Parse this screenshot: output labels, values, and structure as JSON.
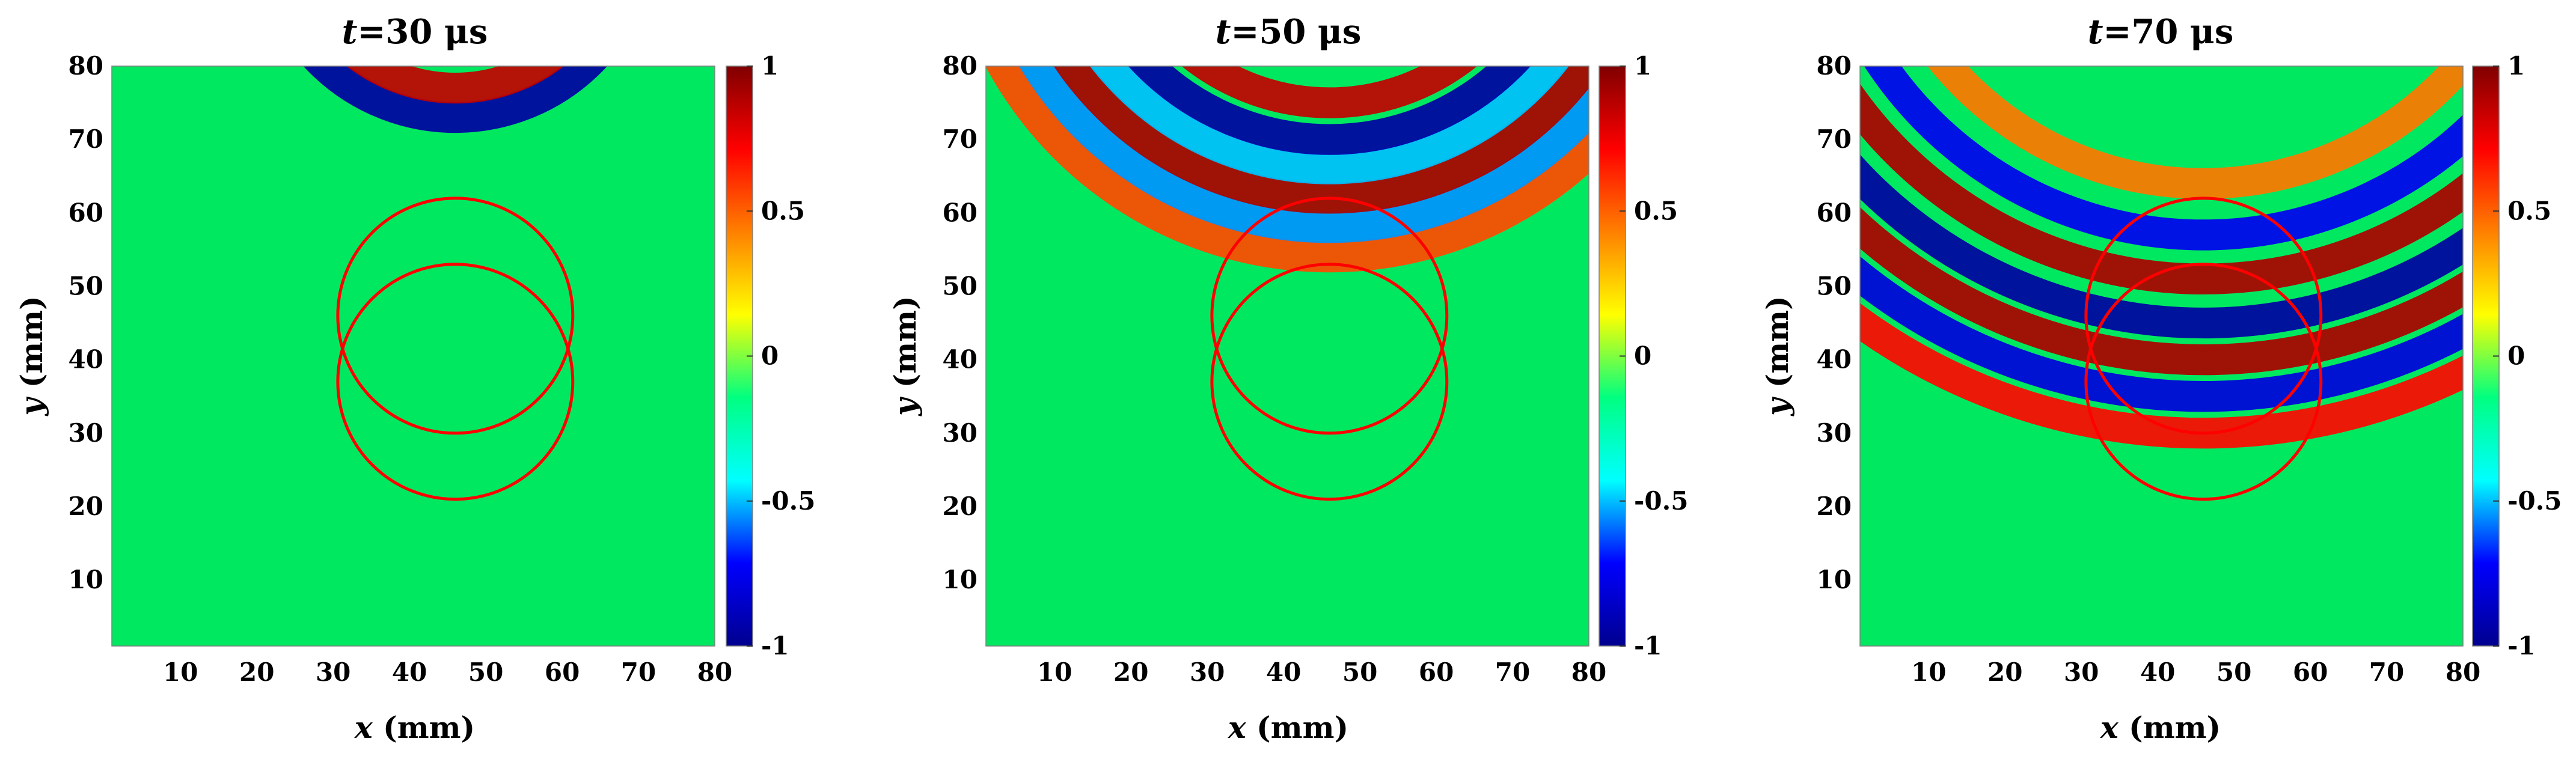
{
  "figure": {
    "colormap": "jet",
    "colormap_stops": [
      "#00008F",
      "#0000FF",
      "#00FFFF",
      "#00FF80",
      "#FFFF00",
      "#FF8000",
      "#FF0000",
      "#800000"
    ],
    "circle_color": "#FF0000",
    "background_color": "#00E860"
  },
  "chart_data": [
    {
      "type": "heatmap",
      "title_var": "t",
      "title_rest": "=30 μs",
      "xlabel_var": "x",
      "xlabel_rest": " (mm)",
      "ylabel_var": "y",
      "ylabel_rest": " (mm)",
      "xlim": [
        1,
        80
      ],
      "ylim": [
        1,
        80
      ],
      "xticks": [
        10,
        20,
        30,
        40,
        50,
        60,
        70,
        80
      ],
      "yticks": [
        10,
        20,
        30,
        40,
        50,
        60,
        70,
        80
      ],
      "clim": [
        -1,
        1
      ],
      "cbar_ticks": [
        {
          "value": 1,
          "label": "1"
        },
        {
          "value": 0.5,
          "label": "0.5"
        },
        {
          "value": 0,
          "label": "0"
        },
        {
          "value": -0.5,
          "label": "-0.5"
        },
        {
          "value": -1,
          "label": "-1"
        }
      ],
      "circles": [
        {
          "cx": 46,
          "cy": 46,
          "r": 16
        },
        {
          "cx": 46,
          "cy": 37,
          "r": 16
        }
      ],
      "wave_fronts": [
        {
          "center_x": 46,
          "center_y": 99,
          "radius": 26,
          "amplitude": -0.95
        },
        {
          "center_x": 46,
          "center_y": 99,
          "radius": 22,
          "amplitude": 0.85
        }
      ]
    },
    {
      "type": "heatmap",
      "title_var": "t",
      "title_rest": "=50 μs",
      "xlabel_var": "x",
      "xlabel_rest": " (mm)",
      "ylabel_var": "y",
      "ylabel_rest": " (mm)",
      "xlim": [
        1,
        80
      ],
      "ylim": [
        1,
        80
      ],
      "xticks": [
        10,
        20,
        30,
        40,
        50,
        60,
        70,
        80
      ],
      "yticks": [
        10,
        20,
        30,
        40,
        50,
        60,
        70,
        80
      ],
      "clim": [
        -1,
        1
      ],
      "cbar_ticks": [
        {
          "value": 1,
          "label": "1"
        },
        {
          "value": 0.5,
          "label": "0.5"
        },
        {
          "value": 0,
          "label": "0"
        },
        {
          "value": -0.5,
          "label": "-0.5"
        },
        {
          "value": -1,
          "label": "-1"
        }
      ],
      "circles": [
        {
          "cx": 46,
          "cy": 46,
          "r": 16
        },
        {
          "cx": 46,
          "cy": 37,
          "r": 16
        }
      ],
      "wave_fronts": [
        {
          "center_x": 46,
          "center_y": 105,
          "radius": 51,
          "amplitude": 0.55
        },
        {
          "center_x": 46,
          "center_y": 105,
          "radius": 47,
          "amplitude": -0.55
        },
        {
          "center_x": 46,
          "center_y": 105,
          "radius": 43,
          "amplitude": 0.9
        },
        {
          "center_x": 46,
          "center_y": 105,
          "radius": 39,
          "amplitude": -0.5
        },
        {
          "center_x": 46,
          "center_y": 105,
          "radius": 35,
          "amplitude": -0.95
        },
        {
          "center_x": 46,
          "center_y": 105,
          "radius": 30,
          "amplitude": 0.85
        }
      ]
    },
    {
      "type": "heatmap",
      "title_var": "t",
      "title_rest": "=70 μs",
      "xlabel_var": "x",
      "xlabel_rest": " (mm)",
      "ylabel_var": "y",
      "ylabel_rest": " (mm)",
      "xlim": [
        1,
        80
      ],
      "ylim": [
        1,
        80
      ],
      "xticks": [
        10,
        20,
        30,
        40,
        50,
        60,
        70,
        80
      ],
      "yticks": [
        10,
        20,
        30,
        40,
        50,
        60,
        70,
        80
      ],
      "clim": [
        -1,
        1
      ],
      "cbar_ticks": [
        {
          "value": 1,
          "label": "1"
        },
        {
          "value": 0.5,
          "label": "0.5"
        },
        {
          "value": 0,
          "label": "0"
        },
        {
          "value": -0.5,
          "label": "-0.5"
        },
        {
          "value": -1,
          "label": "-1"
        }
      ],
      "circles": [
        {
          "cx": 46,
          "cy": 46,
          "r": 16
        },
        {
          "cx": 46,
          "cy": 37,
          "r": 16
        }
      ],
      "wave_fronts": [
        {
          "center_x": 46,
          "center_y": 110,
          "radius": 80,
          "amplitude": 0.7
        },
        {
          "center_x": 46,
          "center_y": 110,
          "radius": 75,
          "amplitude": -0.8
        },
        {
          "center_x": 46,
          "center_y": 110,
          "radius": 70,
          "amplitude": 0.9
        },
        {
          "center_x": 46,
          "center_y": 110,
          "radius": 65,
          "amplitude": -0.95
        },
        {
          "center_x": 46,
          "center_y": 110,
          "radius": 59,
          "amplitude": 0.9
        },
        {
          "center_x": 46,
          "center_y": 110,
          "radius": 53,
          "amplitude": -0.75
        },
        {
          "center_x": 46,
          "center_y": 110,
          "radius": 46,
          "amplitude": 0.45
        }
      ]
    }
  ]
}
